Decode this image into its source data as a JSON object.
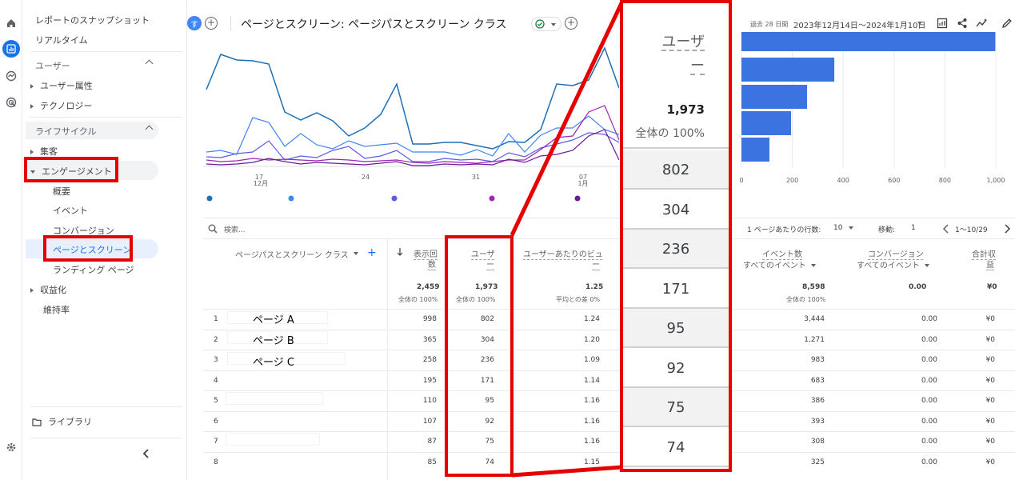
{
  "rail": {
    "icons": [
      "home-icon",
      "reports-icon",
      "explore-icon",
      "advertising-icon",
      "settings-icon"
    ]
  },
  "sidebar": {
    "snapshot": "レポートのスナップショット",
    "realtime": "リアルタイム",
    "user_section": "ユーザー",
    "user_attributes": "ユーザー属性",
    "technology": "テクノロジー",
    "lifecycle_section": "ライフサイクル",
    "acquisition": "集客",
    "engagement": "エンゲージメント",
    "overview": "概要",
    "events": "イベント",
    "conversions": "コンバージョン",
    "pages_screens": "ページとスクリーン",
    "landing_page": "ランディング ページ",
    "monetization": "収益化",
    "retention": "維持率",
    "library": "ライブラリ"
  },
  "header": {
    "avatar_letter": "す",
    "title": "ページとスクリーン: ページパスとスクリーン クラス",
    "date_prefix": "過去 28 日間",
    "date_range": "2023年12月14日～2024年1月10日"
  },
  "line_chart": {
    "x_ticks": [
      {
        "label": "17",
        "sub": "12月"
      },
      {
        "label": "24",
        "sub": ""
      },
      {
        "label": "31",
        "sub": ""
      },
      {
        "label": "07",
        "sub": "1月"
      }
    ],
    "legend_colors": [
      "#1f6fb4",
      "#4285f4",
      "#5b5be8",
      "#9c27b0",
      "#6a1b9a"
    ]
  },
  "bar_chart": {
    "x_ticks": [
      "0",
      "200",
      "400",
      "600",
      "800",
      "1,000"
    ],
    "color": "#3b73e0"
  },
  "chart_data": [
    {
      "type": "bar",
      "orientation": "horizontal",
      "categories": [
        "ページ A",
        "ページ B",
        "ページ C",
        "4",
        "5"
      ],
      "values": [
        998,
        365,
        258,
        195,
        110
      ],
      "xlim": [
        0,
        1000
      ]
    }
  ],
  "table": {
    "search_placeholder": "検索...",
    "rows_per_page_label": "1 ページあたりの行数:",
    "rows_per_page": "10",
    "goto_label": "移動:",
    "goto_value": "1",
    "page_range": "1〜10/29",
    "columns": {
      "dimension": "ページパスとスクリーン クラス",
      "views_1": "表示回",
      "views_2": "数",
      "users_1": "ユーザ",
      "users_2": "ー",
      "views_per_user_1": "ユーザーあたりのビュ",
      "views_per_user_2": "ー",
      "event_count": "イベント数",
      "event_sub": "すべてのイベント",
      "conversions": "コンバージョン",
      "conv_sub": "すべてのイベント",
      "revenue_1": "合計収",
      "revenue_2": "益"
    },
    "totals": {
      "views": "2,459",
      "views_sub": "全体の 100%",
      "users": "1,973",
      "users_sub": "全体の 100%",
      "vpu": "1.25",
      "vpu_sub": "平均との差 0%",
      "events": "8,598",
      "events_sub": "全体の 100%",
      "conversions": "0.00",
      "revenue": "¥0"
    },
    "rows": [
      {
        "n": "1",
        "name": "ページ A",
        "views": "998",
        "users": "802",
        "vpu": "1.24",
        "events": "3,444",
        "conv": "0.00",
        "rev": "¥0"
      },
      {
        "n": "2",
        "name": "ページ B",
        "views": "365",
        "users": "304",
        "vpu": "1.20",
        "events": "1,271",
        "conv": "0.00",
        "rev": "¥0"
      },
      {
        "n": "3",
        "name": "ページ C",
        "views": "258",
        "users": "236",
        "vpu": "1.09",
        "events": "983",
        "conv": "0.00",
        "rev": "¥0"
      },
      {
        "n": "4",
        "name": "",
        "views": "195",
        "users": "171",
        "vpu": "1.14",
        "events": "683",
        "conv": "0.00",
        "rev": "¥0"
      },
      {
        "n": "5",
        "name": "",
        "views": "110",
        "users": "95",
        "vpu": "1.16",
        "events": "386",
        "conv": "0.00",
        "rev": "¥0"
      },
      {
        "n": "6",
        "name": "",
        "views": "107",
        "users": "92",
        "vpu": "1.16",
        "events": "393",
        "conv": "0.00",
        "rev": "¥0"
      },
      {
        "n": "7",
        "name": "",
        "views": "87",
        "users": "75",
        "vpu": "1.16",
        "events": "308",
        "conv": "0.00",
        "rev": "¥0"
      },
      {
        "n": "8",
        "name": "",
        "views": "85",
        "users": "74",
        "vpu": "1.15",
        "events": "325",
        "conv": "0.00",
        "rev": "¥0"
      }
    ]
  },
  "zoom": {
    "header_1": "ユーザ",
    "header_2": "ー",
    "total": "1,973",
    "total_sub": "全体の 100%",
    "values": [
      "802",
      "304",
      "236",
      "171",
      "95",
      "92",
      "75",
      "74"
    ]
  }
}
